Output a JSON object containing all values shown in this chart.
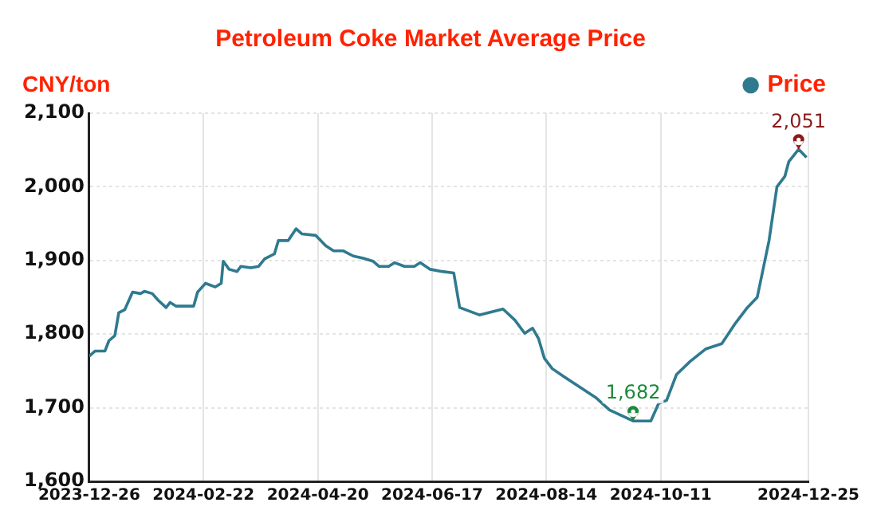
{
  "chart_data": {
    "type": "line",
    "title": "Petroleum Coke Market Average Price",
    "ylabel": "CNY/ton",
    "x": [
      "2023-12-26",
      "2023-12-29",
      "2024-01-03",
      "2024-01-05",
      "2024-01-08",
      "2024-01-10",
      "2024-01-13",
      "2024-01-17",
      "2024-01-21",
      "2024-01-23",
      "2024-01-27",
      "2024-01-30",
      "2024-02-03",
      "2024-02-05",
      "2024-02-08",
      "2024-02-17",
      "2024-02-19",
      "2024-02-23",
      "2024-02-28",
      "2024-03-02",
      "2024-03-03",
      "2024-03-06",
      "2024-03-10",
      "2024-03-12",
      "2024-03-17",
      "2024-03-21",
      "2024-03-24",
      "2024-03-29",
      "2024-03-31",
      "2024-04-05",
      "2024-04-09",
      "2024-04-12",
      "2024-04-19",
      "2024-04-24",
      "2024-04-28",
      "2024-05-03",
      "2024-05-08",
      "2024-05-13",
      "2024-05-18",
      "2024-05-21",
      "2024-05-26",
      "2024-05-29",
      "2024-06-03",
      "2024-06-08",
      "2024-06-11",
      "2024-06-16",
      "2024-06-22",
      "2024-06-28",
      "2024-07-01",
      "2024-07-11",
      "2024-07-23",
      "2024-07-29",
      "2024-08-03",
      "2024-08-07",
      "2024-08-10",
      "2024-08-13",
      "2024-08-17",
      "2024-08-23",
      "2024-08-31",
      "2024-09-08",
      "2024-09-15",
      "2024-09-27",
      "2024-10-06",
      "2024-10-10",
      "2024-10-14",
      "2024-10-19",
      "2024-10-26",
      "2024-11-03",
      "2024-11-11",
      "2024-11-18",
      "2024-11-24",
      "2024-11-29",
      "2024-12-05",
      "2024-12-09",
      "2024-12-13",
      "2024-12-15",
      "2024-12-20",
      "2024-12-24"
    ],
    "series": [
      {
        "name": "Price",
        "color": "#2f7a8f",
        "values": [
          1770,
          1777,
          1777,
          1791,
          1798,
          1829,
          1833,
          1857,
          1855,
          1858,
          1855,
          1846,
          1836,
          1843,
          1838,
          1838,
          1857,
          1869,
          1864,
          1869,
          1899,
          1888,
          1885,
          1892,
          1890,
          1892,
          1902,
          1909,
          1927,
          1927,
          1943,
          1936,
          1934,
          1920,
          1913,
          1913,
          1906,
          1903,
          1899,
          1892,
          1892,
          1897,
          1892,
          1892,
          1897,
          1888,
          1885,
          1883,
          1836,
          1826,
          1834,
          1819,
          1801,
          1808,
          1794,
          1767,
          1753,
          1742,
          1728,
          1714,
          1697,
          1682,
          1682,
          1706,
          1710,
          1745,
          1763,
          1780,
          1787,
          1815,
          1836,
          1850,
          1927,
          2000,
          2014,
          2034,
          2051,
          2040
        ]
      }
    ],
    "xlim": [
      "2023-12-26",
      "2024-12-25"
    ],
    "xticks": [
      "2023-12-26",
      "2024-02-22",
      "2024-04-20",
      "2024-06-17",
      "2024-08-14",
      "2024-10-11",
      "2024-12-25"
    ],
    "ylim": [
      1600,
      2100
    ],
    "yticks": [
      {
        "value": 1600,
        "label": "1,600"
      },
      {
        "value": 1700,
        "label": "1,700"
      },
      {
        "value": 1800,
        "label": "1,800"
      },
      {
        "value": 1900,
        "label": "1,900"
      },
      {
        "value": 2000,
        "label": "2,000"
      },
      {
        "value": 2100,
        "label": "2,100"
      }
    ],
    "annotations": [
      {
        "text": "1,682",
        "x": "2024-09-27",
        "y": 1682
      },
      {
        "text": "2,051",
        "x": "2024-12-20",
        "y": 2051
      }
    ],
    "grid": true,
    "legend": "top right",
    "marker": "none",
    "line_style": "solid"
  }
}
